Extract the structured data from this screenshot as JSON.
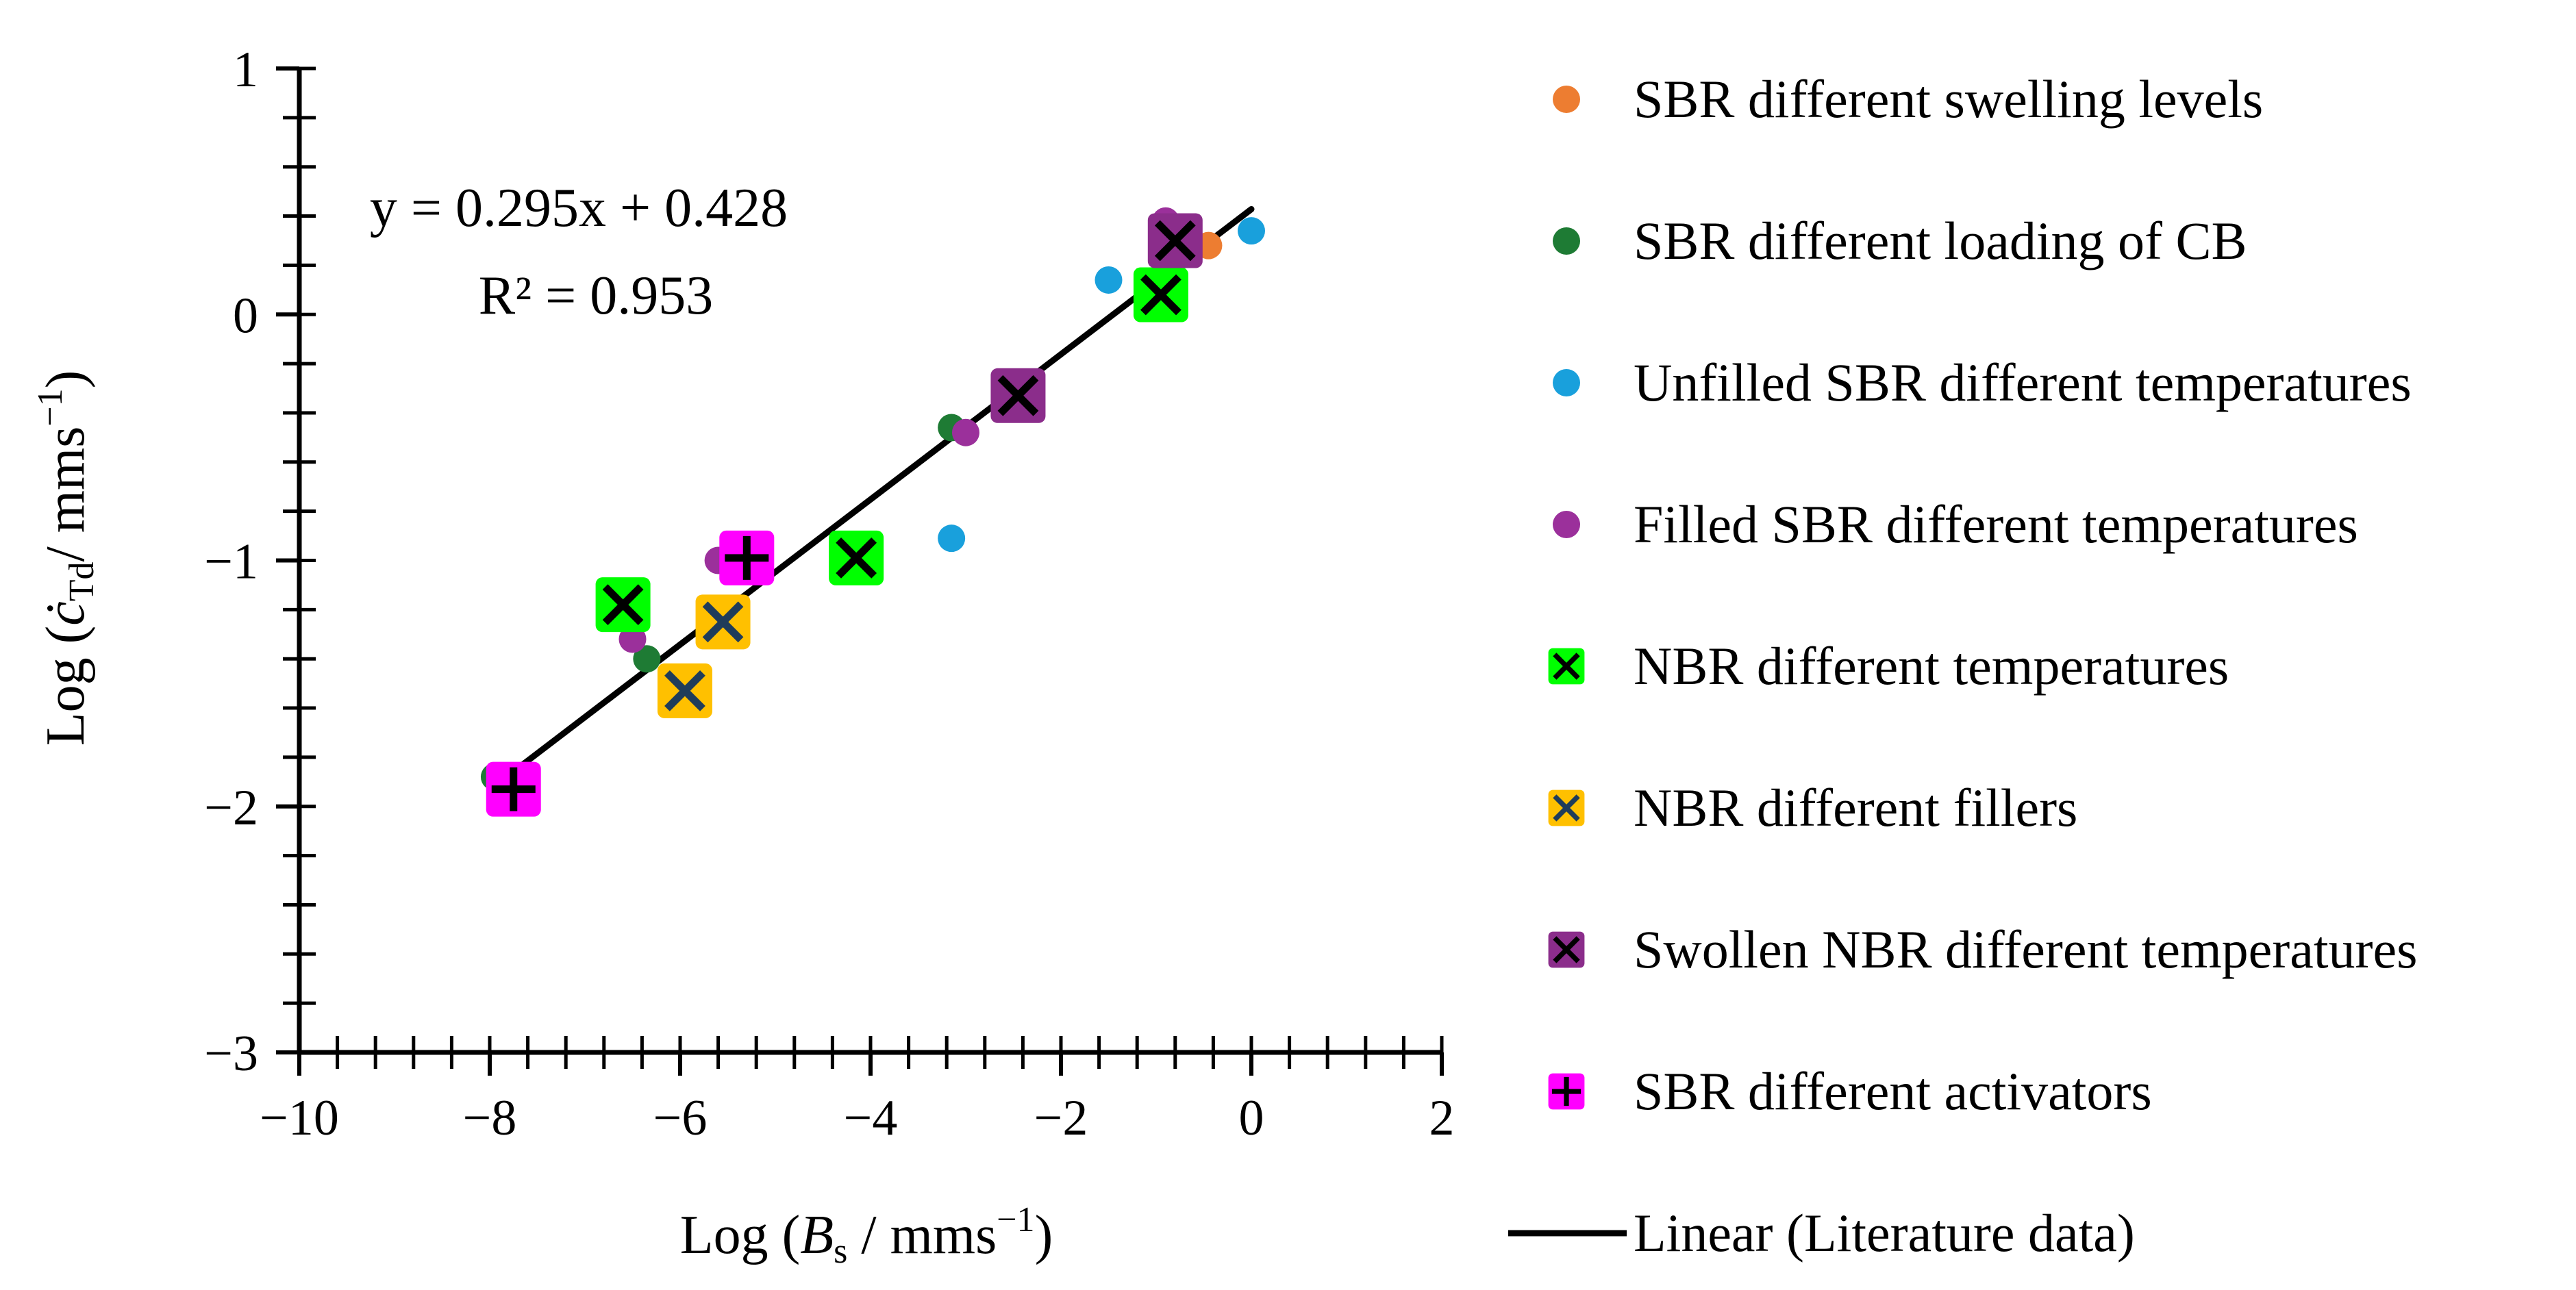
{
  "chart_data": {
    "type": "scatter",
    "xlabel": {
      "prefix": "Log (",
      "var": "B",
      "sub": "s",
      "suffix": " / mms",
      "sup": "−1",
      "close": ")"
    },
    "ylabel": {
      "prefix": "Log (",
      "var": "ċ",
      "sub": "Td",
      "suffix": "/ mms",
      "sup": "−1",
      "close": ")"
    },
    "xlim": [
      -10,
      2
    ],
    "ylim": [
      -3,
      1
    ],
    "x_major_ticks": [
      -10,
      -8,
      -6,
      -4,
      -2,
      0,
      2
    ],
    "y_major_ticks": [
      -3,
      -2,
      -1,
      0,
      1
    ],
    "x_tick_labels": [
      "−10",
      "−8",
      "−6",
      "−4",
      "−2",
      "0",
      "2"
    ],
    "y_tick_labels": [
      "−3",
      "−2",
      "−1",
      "0",
      "1"
    ],
    "x_minor_step": 0.4,
    "y_minor_step": 0.2,
    "grid": false,
    "legend_position": "right",
    "series": [
      {
        "name": "SBR different swelling levels",
        "marker": "circle",
        "color": "#ED7D31",
        "points": [
          [
            -0.85,
            0.35
          ],
          [
            -0.45,
            0.28
          ]
        ]
      },
      {
        "name": "SBR different loading of CB",
        "marker": "circle",
        "color": "#1E7B34",
        "points": [
          [
            -7.95,
            -1.88
          ],
          [
            -6.35,
            -1.4
          ],
          [
            -3.15,
            -0.46
          ],
          [
            -0.95,
            0.15
          ]
        ]
      },
      {
        "name": "Unfilled SBR different temperatures",
        "marker": "circle",
        "color": "#19A0DC",
        "points": [
          [
            -1.5,
            0.14
          ],
          [
            -3.15,
            -0.91
          ],
          [
            0.0,
            0.34
          ]
        ]
      },
      {
        "name": "Filled SBR different temperatures",
        "marker": "circle",
        "color": "#9B309B",
        "points": [
          [
            -6.5,
            -1.32
          ],
          [
            -5.6,
            -1.0
          ],
          [
            -3.0,
            -0.48
          ],
          [
            -2.4,
            -0.32
          ],
          [
            -0.9,
            0.38
          ]
        ]
      },
      {
        "name": "NBR different temperatures",
        "marker": "square-x",
        "color": "#00FF00",
        "mark_color": "#000000",
        "points": [
          [
            -6.6,
            -1.18
          ],
          [
            -4.15,
            -0.99
          ],
          [
            -0.95,
            0.08
          ]
        ]
      },
      {
        "name": "NBR different fillers",
        "marker": "square-x",
        "color": "#FFC000",
        "mark_color": "#1F3C5A",
        "points": [
          [
            -5.95,
            -1.53
          ],
          [
            -5.55,
            -1.25
          ]
        ]
      },
      {
        "name": "Swollen NBR different temperatures",
        "marker": "square-x",
        "color": "#8B2D8B",
        "mark_color": "#000000",
        "points": [
          [
            -2.45,
            -0.33
          ],
          [
            -0.8,
            0.3
          ]
        ]
      },
      {
        "name": "SBR different activators",
        "marker": "square-plus",
        "color": "#FF00FF",
        "mark_color": "#000000",
        "points": [
          [
            -7.75,
            -1.93
          ],
          [
            -5.3,
            -0.99
          ]
        ]
      }
    ],
    "trendline": {
      "name": "Linear (Literature data)",
      "slope": 0.295,
      "intercept": 0.428,
      "x_range": [
        -7.95,
        0.0
      ],
      "color": "#000000",
      "equation_label": "y = 0.295x + 0.428",
      "r2_label": "R² = 0.953"
    }
  }
}
